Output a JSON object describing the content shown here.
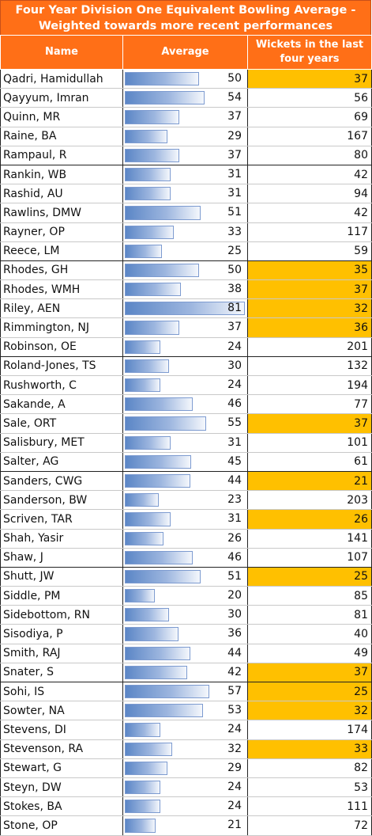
{
  "title": "Four Year Division One Equivalent Bowling Average - Weighted towards more recent performances",
  "headers": {
    "name": "Name",
    "average": "Average",
    "wickets": "Wickets in the last four years"
  },
  "colors": {
    "header_bg": "#ff6f17",
    "highlight": "#ffc000",
    "bar": "#5b86c6"
  },
  "bar_scale_max": 81,
  "rows": [
    {
      "name": "Qadri, Hamidullah",
      "average": "50",
      "wickets": "37",
      "highlight": true
    },
    {
      "name": "Qayyum, Imran",
      "average": "54",
      "wickets": "56",
      "highlight": false
    },
    {
      "name": "Quinn, MR",
      "average": "37",
      "wickets": "69",
      "highlight": false
    },
    {
      "name": "Raine, BA",
      "average": "29",
      "wickets": "167",
      "highlight": false
    },
    {
      "name": "Rampaul, R",
      "average": "37",
      "wickets": "80",
      "highlight": false,
      "group_end": true
    },
    {
      "name": "Rankin, WB",
      "average": "31",
      "wickets": "42",
      "highlight": false
    },
    {
      "name": "Rashid, AU",
      "average": "31",
      "wickets": "94",
      "highlight": false
    },
    {
      "name": "Rawlins, DMW",
      "average": "51",
      "wickets": "42",
      "highlight": false
    },
    {
      "name": "Rayner, OP",
      "average": "33",
      "wickets": "117",
      "highlight": false
    },
    {
      "name": "Reece, LM",
      "average": "25",
      "wickets": "59",
      "highlight": false,
      "group_end": true
    },
    {
      "name": "Rhodes, GH",
      "average": "50",
      "wickets": "35",
      "highlight": true
    },
    {
      "name": "Rhodes, WMH",
      "average": "38",
      "wickets": "37",
      "highlight": true
    },
    {
      "name": "Riley, AEN",
      "average": "81",
      "wickets": "32",
      "highlight": true
    },
    {
      "name": "Rimmington, NJ",
      "average": "37",
      "wickets": "36",
      "highlight": true
    },
    {
      "name": "Robinson, OE",
      "average": "24",
      "wickets": "201",
      "highlight": false,
      "group_end": true
    },
    {
      "name": "Roland-Jones, TS",
      "average": "30",
      "wickets": "132",
      "highlight": false
    },
    {
      "name": "Rushworth, C",
      "average": "24",
      "wickets": "194",
      "highlight": false
    },
    {
      "name": "Sakande, A",
      "average": "46",
      "wickets": "77",
      "highlight": false
    },
    {
      "name": "Sale, ORT",
      "average": "55",
      "wickets": "37",
      "highlight": true
    },
    {
      "name": "Salisbury, MET",
      "average": "31",
      "wickets": "101",
      "highlight": false
    },
    {
      "name": "Salter, AG",
      "average": "45",
      "wickets": "61",
      "highlight": false,
      "group_end": true
    },
    {
      "name": "Sanders, CWG",
      "average": "44",
      "wickets": "21",
      "highlight": true
    },
    {
      "name": "Sanderson, BW",
      "average": "23",
      "wickets": "203",
      "highlight": false
    },
    {
      "name": "Scriven, TAR",
      "average": "31",
      "wickets": "26",
      "highlight": true
    },
    {
      "name": "Shah, Yasir",
      "average": "26",
      "wickets": "141",
      "highlight": false
    },
    {
      "name": "Shaw, J",
      "average": "46",
      "wickets": "107",
      "highlight": false,
      "group_end": true
    },
    {
      "name": "Shutt, JW",
      "average": "51",
      "wickets": "25",
      "highlight": true
    },
    {
      "name": "Siddle, PM",
      "average": "20",
      "wickets": "85",
      "highlight": false
    },
    {
      "name": "Sidebottom, RN",
      "average": "30",
      "wickets": "81",
      "highlight": false
    },
    {
      "name": "Sisodiya, P",
      "average": "36",
      "wickets": "40",
      "highlight": false
    },
    {
      "name": "Smith, RAJ",
      "average": "44",
      "wickets": "49",
      "highlight": false
    },
    {
      "name": "Snater, S",
      "average": "42",
      "wickets": "37",
      "highlight": true,
      "group_end": true
    },
    {
      "name": "Sohi, IS",
      "average": "57",
      "wickets": "25",
      "highlight": true
    },
    {
      "name": "Sowter, NA",
      "average": "53",
      "wickets": "32",
      "highlight": true
    },
    {
      "name": "Stevens, DI",
      "average": "24",
      "wickets": "174",
      "highlight": false
    },
    {
      "name": "Stevenson, RA",
      "average": "32",
      "wickets": "33",
      "highlight": true
    },
    {
      "name": "Stewart, G",
      "average": "29",
      "wickets": "82",
      "highlight": false
    },
    {
      "name": "Steyn, DW",
      "average": "24",
      "wickets": "53",
      "highlight": false
    },
    {
      "name": "Stokes, BA",
      "average": "24",
      "wickets": "111",
      "highlight": false
    },
    {
      "name": "Stone, OP",
      "average": "21",
      "wickets": "72",
      "highlight": false
    }
  ]
}
